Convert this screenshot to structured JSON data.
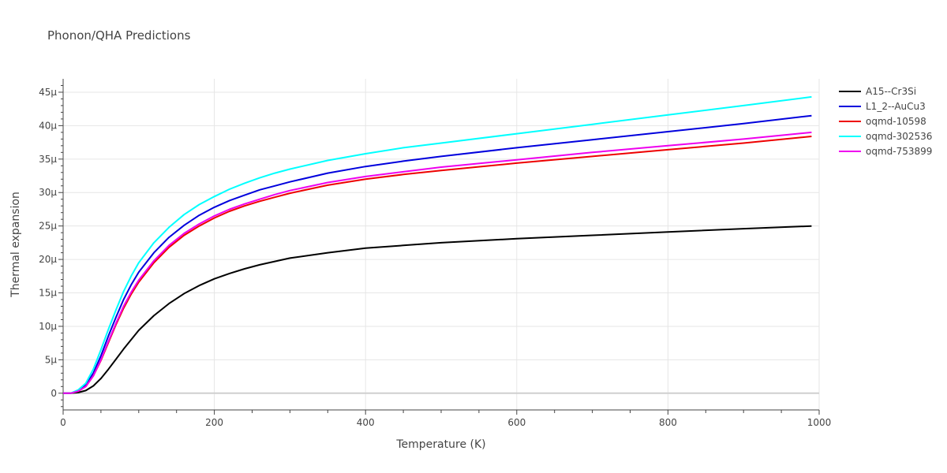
{
  "chart_data": {
    "type": "line",
    "title": "Phonon/QHA Predictions",
    "xlabel": "Temperature (K)",
    "ylabel": "Thermal expansion",
    "xlim": [
      0,
      1000
    ],
    "ylim": [
      -2.5,
      47
    ],
    "grid": true,
    "legend_position": "top-right",
    "x_ticks": [
      {
        "value": 0,
        "label": "0"
      },
      {
        "value": 200,
        "label": "200"
      },
      {
        "value": 400,
        "label": "400"
      },
      {
        "value": 600,
        "label": "600"
      },
      {
        "value": 800,
        "label": "800"
      },
      {
        "value": 1000,
        "label": "1000"
      }
    ],
    "y_ticks": [
      {
        "value": 0,
        "label": "0"
      },
      {
        "value": 5,
        "label": "5μ"
      },
      {
        "value": 10,
        "label": "10μ"
      },
      {
        "value": 15,
        "label": "15μ"
      },
      {
        "value": 20,
        "label": "20μ"
      },
      {
        "value": 25,
        "label": "25μ"
      },
      {
        "value": 30,
        "label": "30μ"
      },
      {
        "value": 35,
        "label": "35μ"
      },
      {
        "value": 40,
        "label": "40μ"
      },
      {
        "value": 45,
        "label": "45μ"
      }
    ],
    "x": [
      0,
      10,
      20,
      30,
      40,
      50,
      60,
      70,
      80,
      90,
      100,
      120,
      140,
      160,
      180,
      200,
      220,
      240,
      260,
      280,
      300,
      350,
      400,
      450,
      500,
      600,
      700,
      800,
      900,
      990
    ],
    "series": [
      {
        "name": "A15--Cr3Si",
        "color": "#000000",
        "values": [
          0,
          0,
          0.1,
          0.4,
          1.1,
          2.2,
          3.6,
          5.1,
          6.6,
          8.0,
          9.4,
          11.6,
          13.4,
          14.9,
          16.1,
          17.1,
          17.9,
          18.6,
          19.2,
          19.7,
          20.2,
          21.0,
          21.7,
          22.1,
          22.5,
          23.1,
          23.6,
          24.1,
          24.6,
          25.0
        ]
      },
      {
        "name": "L1_2--AuCu3",
        "color": "#0000dd",
        "values": [
          0,
          0,
          0.4,
          1.2,
          3.0,
          5.6,
          8.6,
          11.4,
          14.0,
          16.2,
          18.1,
          21.0,
          23.3,
          25.1,
          26.6,
          27.8,
          28.8,
          29.6,
          30.4,
          31.0,
          31.6,
          32.9,
          33.9,
          34.7,
          35.4,
          36.7,
          37.9,
          39.1,
          40.3,
          41.5
        ]
      },
      {
        "name": "oqmd-10598",
        "color": "#ee0000",
        "values": [
          0,
          0,
          0.3,
          1.0,
          2.6,
          4.9,
          7.6,
          10.3,
          12.7,
          14.8,
          16.6,
          19.5,
          21.8,
          23.6,
          25.0,
          26.2,
          27.2,
          28.0,
          28.7,
          29.3,
          29.9,
          31.1,
          32.0,
          32.7,
          33.3,
          34.4,
          35.4,
          36.4,
          37.4,
          38.4
        ]
      },
      {
        "name": "oqmd-302536",
        "color": "#00ffff",
        "values": [
          0,
          0,
          0.5,
          1.5,
          3.6,
          6.5,
          9.6,
          12.5,
          15.2,
          17.5,
          19.5,
          22.5,
          24.8,
          26.7,
          28.2,
          29.4,
          30.5,
          31.4,
          32.2,
          32.9,
          33.5,
          34.8,
          35.8,
          36.7,
          37.4,
          38.8,
          40.2,
          41.6,
          43.0,
          44.3
        ]
      },
      {
        "name": "oqmd-753899",
        "color": "#ee00ee",
        "values": [
          0,
          0,
          0.3,
          1.0,
          2.6,
          5.0,
          7.8,
          10.5,
          13.0,
          15.1,
          16.9,
          19.8,
          22.1,
          23.9,
          25.3,
          26.5,
          27.5,
          28.3,
          29.0,
          29.7,
          30.3,
          31.5,
          32.4,
          33.1,
          33.8,
          34.9,
          36.0,
          37.0,
          38.0,
          39.0
        ]
      }
    ]
  }
}
